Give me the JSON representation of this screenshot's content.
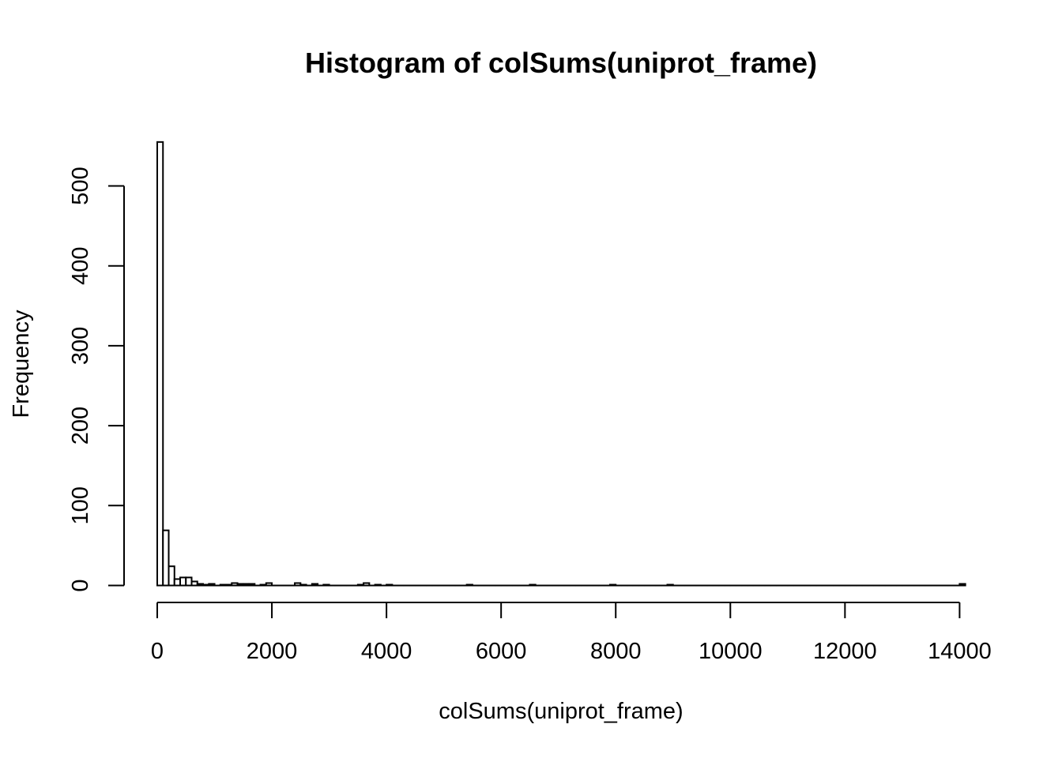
{
  "chart_data": {
    "type": "bar",
    "subtype": "histogram",
    "title": "Histogram of colSums(uniprot_frame)",
    "xlabel": "colSums(uniprot_frame)",
    "ylabel": "Frequency",
    "bin_width": 100,
    "bins_start": 0,
    "bins_end": 14100,
    "xlim": [
      0,
      14100
    ],
    "ylim": [
      0,
      555
    ],
    "x_ticks": [
      0,
      2000,
      4000,
      6000,
      8000,
      10000,
      12000,
      14000
    ],
    "x_tick_labels": [
      "0",
      "2000",
      "4000",
      "6000",
      "8000",
      "10000",
      "12000",
      "14000"
    ],
    "y_ticks": [
      0,
      100,
      200,
      300,
      400,
      500
    ],
    "y_tick_labels": [
      "0",
      "100",
      "200",
      "300",
      "400",
      "500"
    ],
    "nonzero_bins": [
      {
        "x0": 0,
        "x1": 100,
        "count": 555
      },
      {
        "x0": 100,
        "x1": 200,
        "count": 69
      },
      {
        "x0": 200,
        "x1": 300,
        "count": 24
      },
      {
        "x0": 300,
        "x1": 400,
        "count": 8
      },
      {
        "x0": 400,
        "x1": 500,
        "count": 10
      },
      {
        "x0": 500,
        "x1": 600,
        "count": 10
      },
      {
        "x0": 600,
        "x1": 700,
        "count": 5
      },
      {
        "x0": 700,
        "x1": 800,
        "count": 2
      },
      {
        "x0": 800,
        "x1": 900,
        "count": 1
      },
      {
        "x0": 900,
        "x1": 1000,
        "count": 2
      },
      {
        "x0": 1100,
        "x1": 1200,
        "count": 1
      },
      {
        "x0": 1200,
        "x1": 1300,
        "count": 1
      },
      {
        "x0": 1300,
        "x1": 1400,
        "count": 3
      },
      {
        "x0": 1400,
        "x1": 1500,
        "count": 2
      },
      {
        "x0": 1500,
        "x1": 1600,
        "count": 2
      },
      {
        "x0": 1600,
        "x1": 1700,
        "count": 2
      },
      {
        "x0": 1800,
        "x1": 1900,
        "count": 1
      },
      {
        "x0": 1900,
        "x1": 2000,
        "count": 3
      },
      {
        "x0": 2400,
        "x1": 2500,
        "count": 3
      },
      {
        "x0": 2500,
        "x1": 2600,
        "count": 1
      },
      {
        "x0": 2700,
        "x1": 2800,
        "count": 2
      },
      {
        "x0": 2900,
        "x1": 3000,
        "count": 1
      },
      {
        "x0": 3500,
        "x1": 3600,
        "count": 1
      },
      {
        "x0": 3600,
        "x1": 3700,
        "count": 3
      },
      {
        "x0": 3800,
        "x1": 3900,
        "count": 1
      },
      {
        "x0": 4000,
        "x1": 4100,
        "count": 1
      },
      {
        "x0": 5400,
        "x1": 5500,
        "count": 1
      },
      {
        "x0": 6500,
        "x1": 6600,
        "count": 1
      },
      {
        "x0": 7900,
        "x1": 8000,
        "count": 1
      },
      {
        "x0": 8900,
        "x1": 9000,
        "count": 1
      },
      {
        "x0": 14000,
        "x1": 14100,
        "count": 2
      }
    ],
    "grid": false,
    "bar_fill": "#ffffff",
    "bar_stroke": "#000000"
  }
}
